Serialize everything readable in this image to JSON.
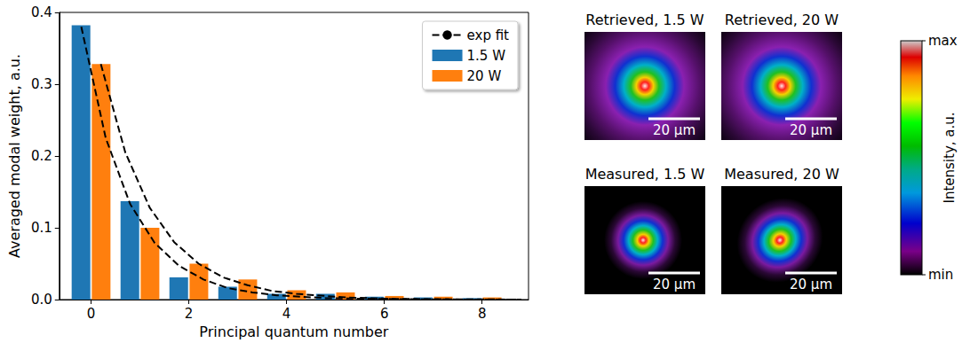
{
  "chart_data": {
    "type": "bar",
    "x_label": "Principal quantum number",
    "y_label": "Averaged modal weight, a.u.",
    "xlim": [
      -0.65,
      8.95
    ],
    "xticks": [
      0,
      2,
      4,
      6,
      8
    ],
    "ylim": [
      0,
      0.4
    ],
    "yticks": [
      {
        "value": 0,
        "label": "0.0"
      },
      {
        "value": 0.1,
        "label": "0.1"
      },
      {
        "value": 0.2,
        "label": "0.2"
      },
      {
        "value": 0.3,
        "label": "0.3"
      },
      {
        "value": 0.4,
        "label": "0.4"
      }
    ],
    "grid": false,
    "legend": "upper right",
    "x": [
      0,
      1,
      2,
      3,
      4,
      5,
      6,
      7,
      8
    ],
    "series": [
      {
        "name": "exp fit",
        "type": "line",
        "color": "#000000",
        "line_style": "dashed",
        "x": [
          -0.2,
          0.3,
          0.8,
          1.3,
          1.8,
          2.3,
          2.8,
          3.3,
          3.8,
          4.8,
          5.8,
          6.8,
          7.8,
          8.8
        ],
        "values": [
          0.38,
          0.225,
          0.133,
          0.079,
          0.047,
          0.028,
          0.016,
          0.01,
          0.006,
          0.002,
          0.001,
          0.0003,
          0.0001,
          4e-05
        ]
      },
      {
        "name": "exp fit",
        "type": "line",
        "color": "#000000",
        "line_style": "dashed",
        "x": [
          0.2,
          0.7,
          1.2,
          1.7,
          2.2,
          2.7,
          3.2,
          3.7,
          4.2,
          5.2,
          6.2,
          7.2,
          8.2,
          8.8
        ],
        "values": [
          0.328,
          0.205,
          0.128,
          0.08,
          0.05,
          0.031,
          0.02,
          0.012,
          0.008,
          0.003,
          0.001,
          0.0005,
          0.0002,
          0.0001
        ]
      },
      {
        "name": "1.5 W",
        "type": "bar",
        "color": "#1f77b4",
        "values": [
          0.382,
          0.137,
          0.031,
          0.018,
          0.008,
          0.008,
          0.004,
          0.003,
          0.002
        ]
      },
      {
        "name": "20 W",
        "type": "bar",
        "color": "#ff7f0e",
        "values": [
          0.328,
          0.1,
          0.05,
          0.028,
          0.013,
          0.01,
          0.005,
          0.004,
          0.003
        ]
      }
    ]
  },
  "images": [
    {
      "title": "Retrieved, 1.5 W",
      "scale_bar": "20 µm"
    },
    {
      "title": "Retrieved, 20 W",
      "scale_bar": "20 µm"
    },
    {
      "title": "Measured, 1.5 W",
      "scale_bar": "20 µm"
    },
    {
      "title": "Measured, 20 W",
      "scale_bar": "20 µm"
    }
  ],
  "colorbar": {
    "label": "Intensity, a.u.",
    "max_label": "max",
    "min_label": "min"
  }
}
